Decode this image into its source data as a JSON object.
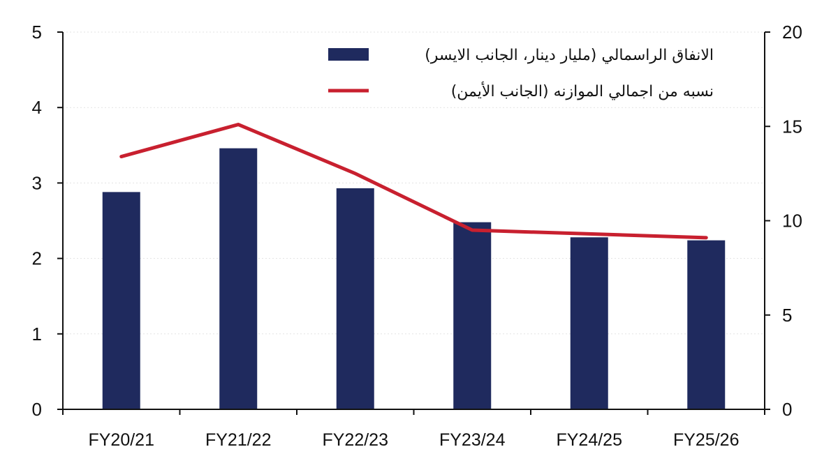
{
  "chart_data": {
    "type": "bar",
    "categories": [
      "FY20/21",
      "FY21/22",
      "FY22/23",
      "FY23/24",
      "FY24/25",
      "FY25/26"
    ],
    "series": [
      {
        "name": "الانفاق الراسمالي (مليار دينار، الجانب الايسر)",
        "type": "bar",
        "axis": "left",
        "color": "#1f2a5e",
        "values": [
          2.88,
          3.46,
          2.93,
          2.48,
          2.28,
          2.24
        ]
      },
      {
        "name": "نسبه من اجمالي الموازنه (الجانب الأيمن)",
        "type": "line",
        "axis": "right",
        "color": "#c8202f",
        "values": [
          13.4,
          15.1,
          12.5,
          9.5,
          9.3,
          9.1
        ]
      }
    ],
    "left_axis": {
      "min": 0,
      "max": 5,
      "ticks": [
        "0",
        "1",
        "2",
        "3",
        "4",
        "5"
      ]
    },
    "right_axis": {
      "min": 0,
      "max": 20,
      "ticks": [
        "0",
        "5",
        "10",
        "15",
        "20"
      ]
    },
    "grid": true,
    "legend": "top-right",
    "title": "",
    "xlabel": "",
    "ylabel": ""
  }
}
